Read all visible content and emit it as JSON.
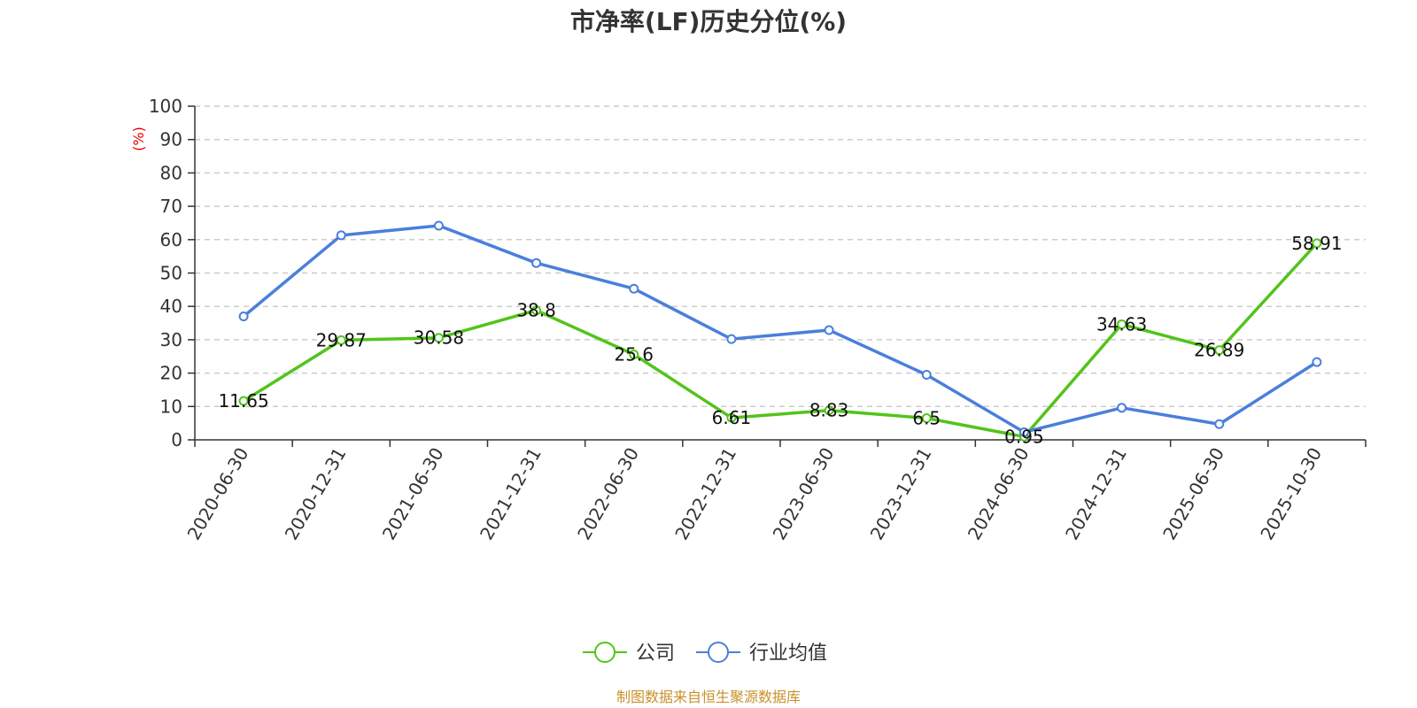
{
  "chart_data": {
    "type": "line",
    "title": "市净率(LF)历史分位(%)",
    "ylabel": "(%)",
    "xlabel": "",
    "ylim": [
      0,
      100
    ],
    "yticks": [
      0,
      10,
      20,
      30,
      40,
      50,
      60,
      70,
      80,
      90,
      100
    ],
    "grid": true,
    "legend_position": "bottom",
    "categories": [
      "2020-06-30",
      "2020-12-31",
      "2021-06-30",
      "2021-12-31",
      "2022-06-30",
      "2022-12-31",
      "2023-06-30",
      "2023-12-31",
      "2024-06-30",
      "2024-12-31",
      "2025-06-30",
      "2025-10-30"
    ],
    "series": [
      {
        "name": "公司",
        "color": "#52c41a",
        "show_labels": true,
        "values": [
          11.65,
          29.87,
          30.58,
          38.8,
          25.6,
          6.61,
          8.83,
          6.5,
          0.95,
          34.63,
          26.89,
          58.91
        ]
      },
      {
        "name": "行业均值",
        "color": "#4a7fdc",
        "show_labels": false,
        "values": [
          37,
          61.3,
          64.2,
          53,
          45.3,
          30.2,
          32.9,
          19.5,
          2.3,
          9.6,
          4.7,
          23.3
        ]
      }
    ],
    "source": "制图数据来自恒生聚源数据库"
  }
}
